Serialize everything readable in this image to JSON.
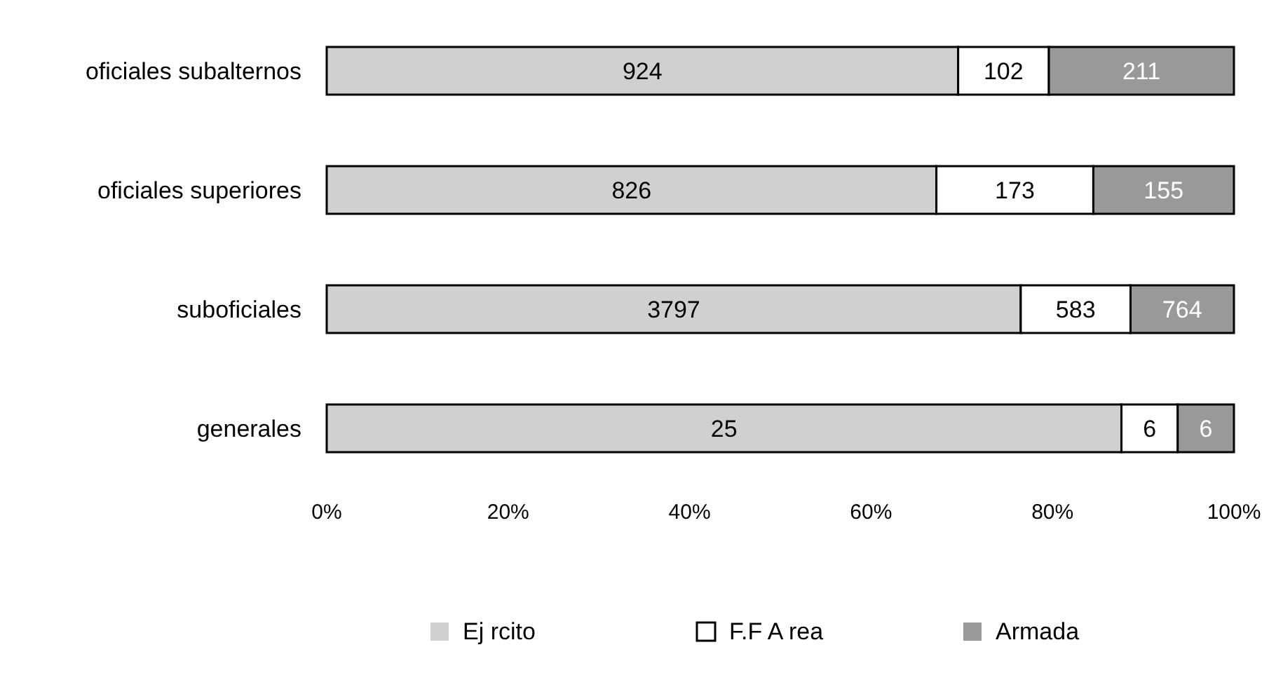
{
  "chart_data": {
    "type": "bar",
    "orientation": "horizontal",
    "stacked": true,
    "categories": [
      "oficiales subalternos",
      "oficiales superiores",
      "suboficiales",
      "generales"
    ],
    "series": [
      {
        "name": "Ej rcito",
        "color": "#d0d0d0",
        "values": [
          69.6,
          67.2,
          76.5,
          87.6
        ]
      },
      {
        "name": "F.F A rea",
        "color": "#ffffff",
        "values": [
          10.0,
          17.3,
          12.1,
          6.2
        ]
      },
      {
        "name": "Armada",
        "color": "#999999",
        "values": [
          20.4,
          15.5,
          11.4,
          6.2
        ]
      }
    ],
    "annotations": [
      "924",
      "102",
      "211",
      "826",
      "173",
      "155",
      "3797",
      "583",
      "764",
      "25",
      "6",
      "6"
    ],
    "xlim": [
      0,
      100
    ],
    "xticks": [
      {
        "value": 0,
        "label": "0%"
      },
      {
        "value": 20,
        "label": "20%"
      },
      {
        "value": 40,
        "label": "40%"
      },
      {
        "value": 60,
        "label": "60%"
      },
      {
        "value": 80,
        "label": "80%"
      },
      {
        "value": 100,
        "label": "100%"
      }
    ],
    "legend": "bottom"
  }
}
